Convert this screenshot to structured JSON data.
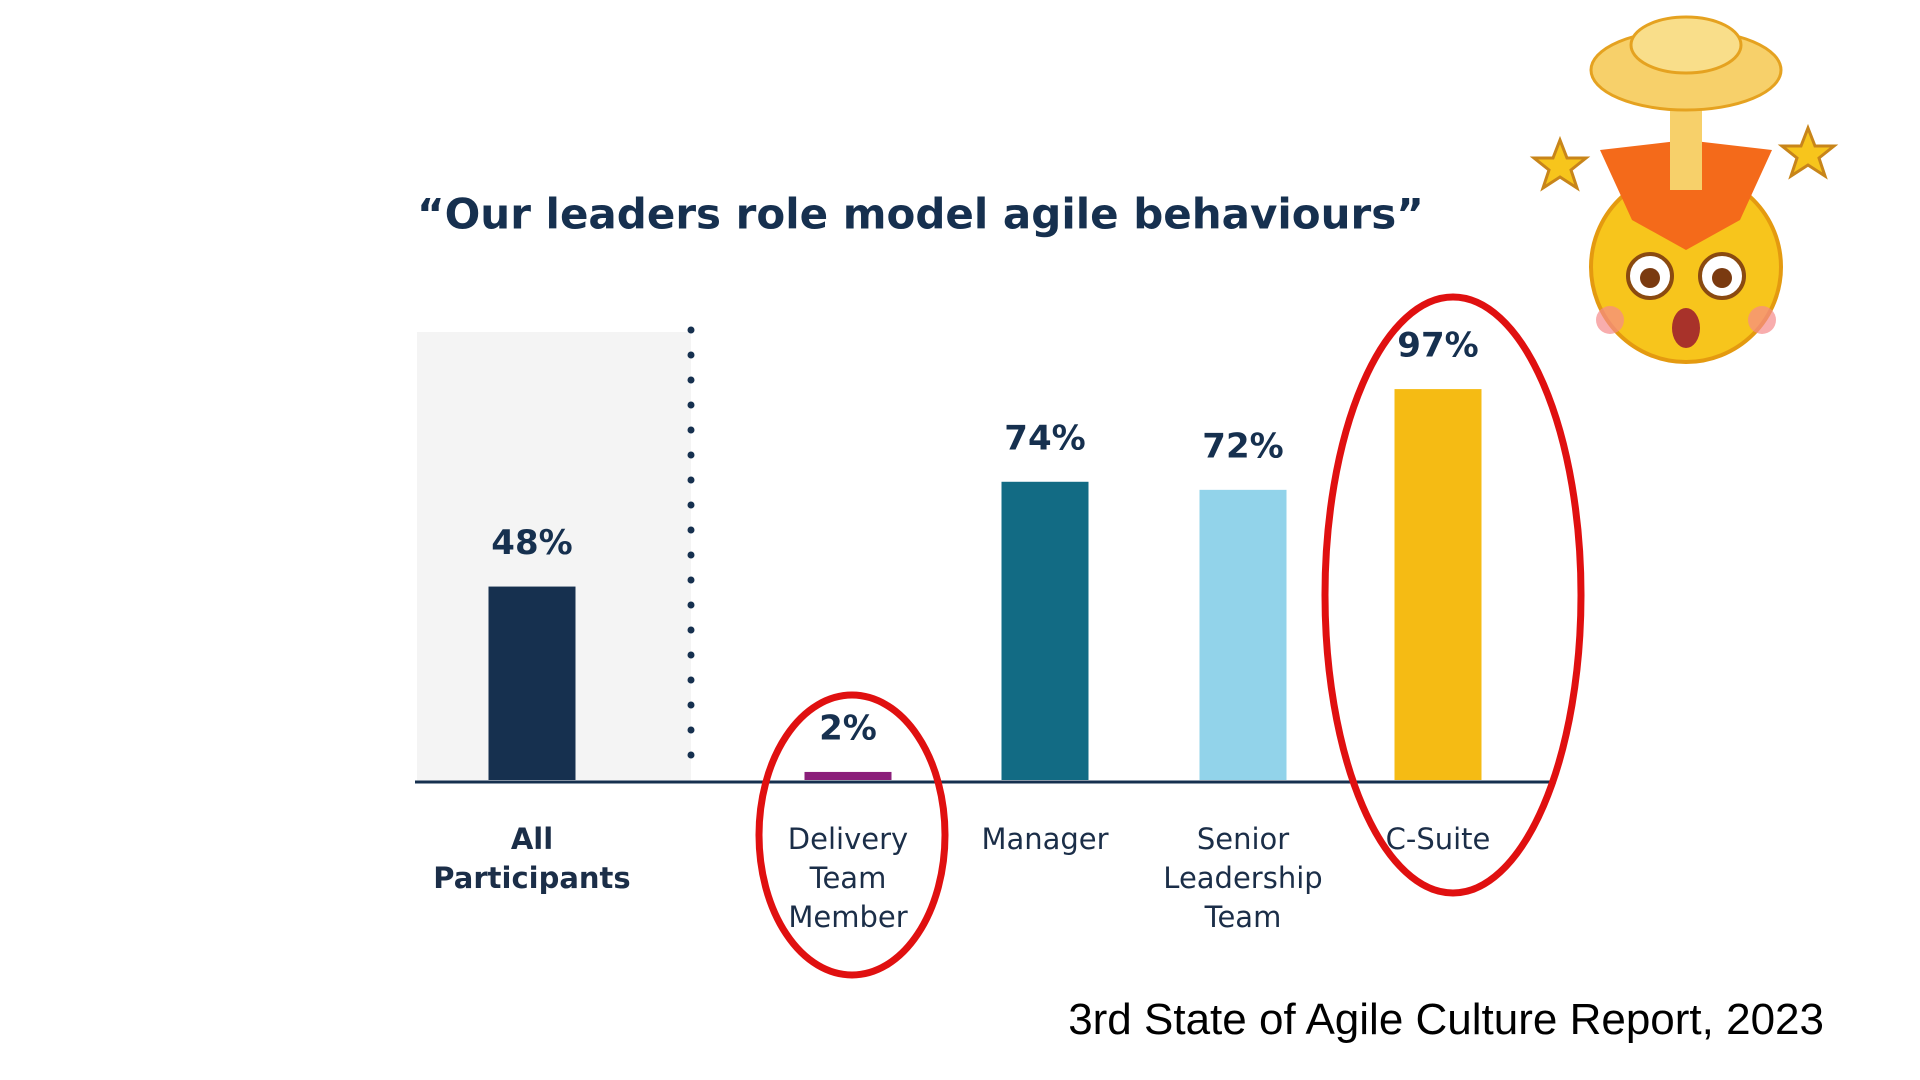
{
  "chart_data": {
    "type": "bar",
    "title": "“Our leaders role model agile behaviours”",
    "categories": [
      "All Participants",
      "Delivery Team Member",
      "Manager",
      "Senior Leadership Team",
      "C-Suite"
    ],
    "values": [
      48,
      2,
      74,
      72,
      97
    ],
    "value_labels": [
      "48%",
      "2%",
      "74%",
      "72%",
      "97%"
    ],
    "colors": [
      "#16304f",
      "#8b1f7a",
      "#126b84",
      "#92d3ea",
      "#f5bb14"
    ],
    "source": "3rd State of Agile Culture Report, 2023"
  }
}
